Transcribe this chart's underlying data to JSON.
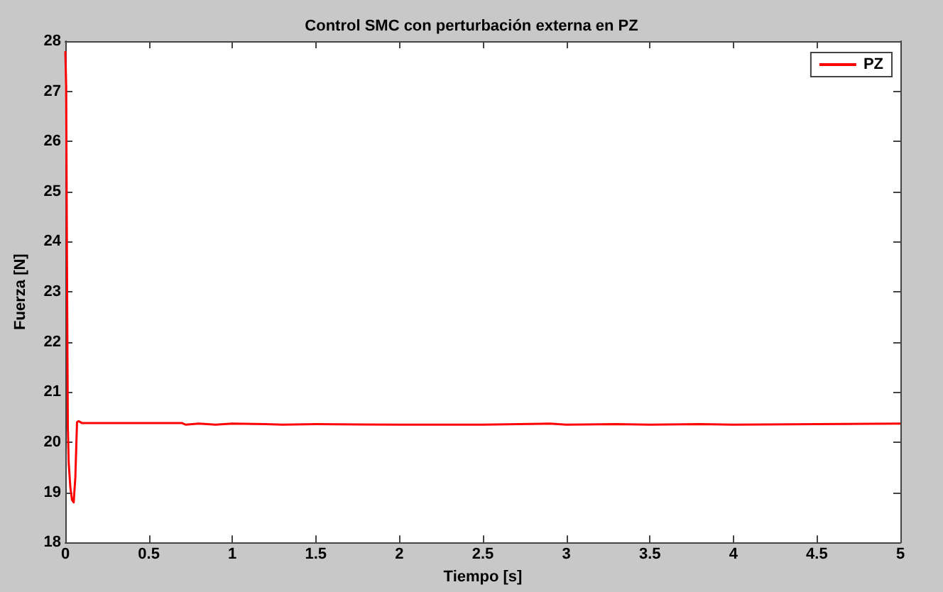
{
  "chart_data": {
    "type": "line",
    "title": "Control SMC con perturbación externa en PZ",
    "xlabel": "Tiempo [s]",
    "ylabel": "Fuerza [N]",
    "xlim": [
      0,
      5
    ],
    "ylim": [
      18,
      28
    ],
    "xticks": [
      0,
      0.5,
      1,
      1.5,
      2,
      2.5,
      3,
      3.5,
      4,
      4.5,
      5
    ],
    "yticks": [
      18,
      19,
      20,
      21,
      22,
      23,
      24,
      25,
      26,
      27,
      28
    ],
    "grid": false,
    "legend": "top right",
    "line_style": "solid",
    "marker": "none",
    "series": [
      {
        "name": "PZ",
        "color": "#ff0000",
        "x": [
          0,
          0.005,
          0.01,
          0.015,
          0.02,
          0.03,
          0.04,
          0.05,
          0.06,
          0.07,
          0.08,
          0.1,
          0.3,
          0.7,
          0.72,
          0.8,
          0.9,
          1.0,
          1.2,
          1.3,
          1.5,
          2.0,
          2.5,
          2.9,
          3.0,
          3.3,
          3.5,
          3.8,
          4.0,
          4.5,
          5.0
        ],
        "values": [
          27.8,
          27.1,
          23.5,
          20.3,
          19.6,
          19.1,
          18.85,
          18.8,
          19.3,
          20.4,
          20.42,
          20.38,
          20.38,
          20.38,
          20.35,
          20.37,
          20.35,
          20.37,
          20.36,
          20.35,
          20.36,
          20.35,
          20.35,
          20.37,
          20.35,
          20.36,
          20.35,
          20.36,
          20.35,
          20.36,
          20.37
        ]
      }
    ]
  }
}
